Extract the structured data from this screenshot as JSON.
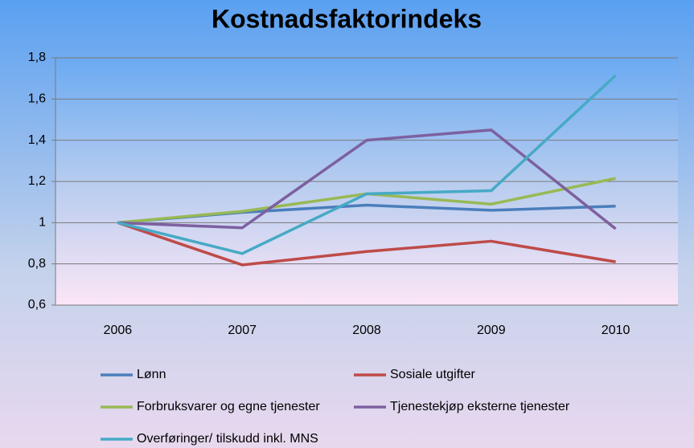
{
  "chart_data": {
    "type": "line",
    "title": "Kostnadsfaktorindeks",
    "categories": [
      "2006",
      "2007",
      "2008",
      "2009",
      "2010"
    ],
    "series": [
      {
        "name": "Lønn",
        "color": "#4a7ebb",
        "values": [
          1,
          1.05,
          1.085,
          1.06,
          1.08
        ]
      },
      {
        "name": "Sosiale utgifter",
        "color": "#be4b48",
        "values": [
          1,
          0.795,
          0.86,
          0.91,
          0.81
        ]
      },
      {
        "name": "Forbruksvarer og egne tjenester",
        "color": "#98b954",
        "values": [
          1,
          1.055,
          1.14,
          1.09,
          1.215
        ]
      },
      {
        "name": "Tjenestekjøp eksterne tjenester",
        "color": "#7d60a0",
        "values": [
          1,
          0.975,
          1.4,
          1.45,
          0.97
        ]
      },
      {
        "name": "Overføringer/ tilskudd inkl. MNS",
        "color": "#46aac5",
        "values": [
          1,
          0.85,
          1.14,
          1.155,
          1.715
        ]
      }
    ],
    "ylim": [
      0.6,
      1.8
    ],
    "yticks": [
      {
        "value": 0.6,
        "label": "0,6"
      },
      {
        "value": 0.8,
        "label": "0,8"
      },
      1,
      {
        "value": 1.2,
        "label": "1,2"
      },
      {
        "value": 1.4,
        "label": "1,4"
      },
      {
        "value": 1.6,
        "label": "1,6"
      },
      {
        "value": 1.8,
        "label": "1,8"
      }
    ],
    "grid": true
  }
}
